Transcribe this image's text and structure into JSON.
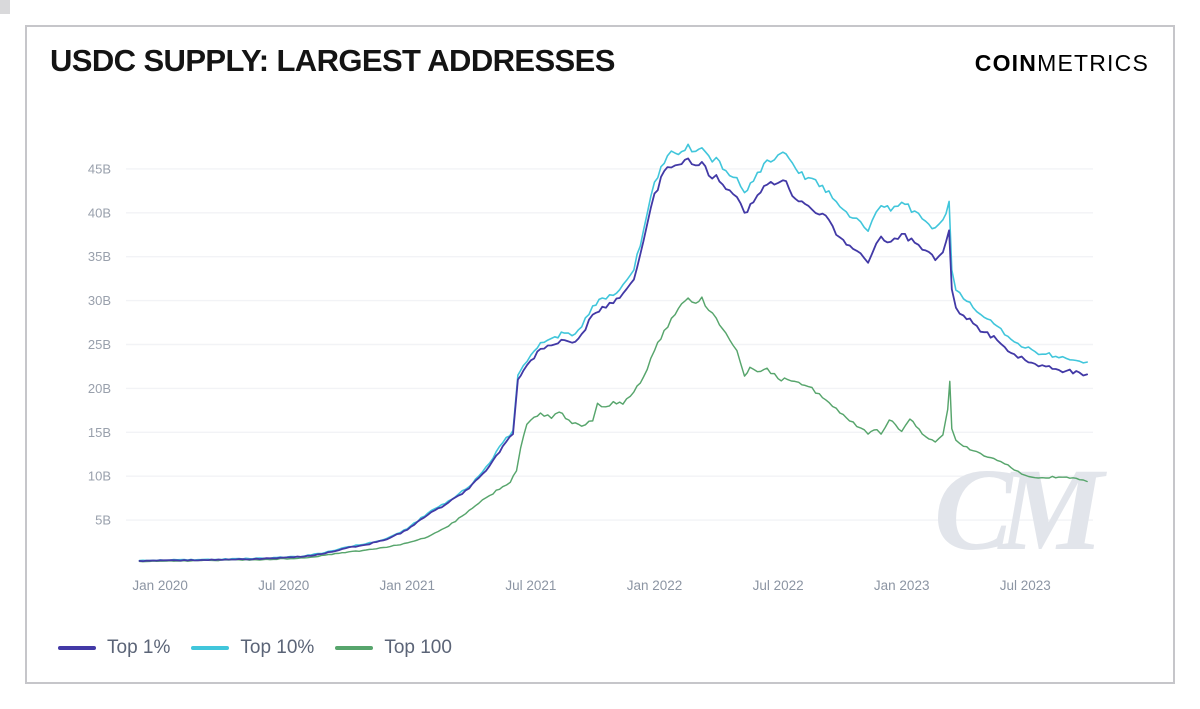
{
  "header": {
    "title": "USDC SUPPLY: LARGEST ADDRESSES",
    "logo_bold": "COIN",
    "logo_light": "METRICS"
  },
  "watermark": "CM",
  "colors": {
    "top_1_percent": "#4239A6",
    "top_10_percent": "#41C6DB",
    "top_100": "#57A56C",
    "grid": "#f2f3f6",
    "y_tick_text": "#99a0ac",
    "x_tick_text": "#8c95a3",
    "card_border": "#c6c6ca",
    "watermark": "#e2e5eb"
  },
  "legend": {
    "items": [
      {
        "label": "Top 1%",
        "color": "#4239A6"
      },
      {
        "label": "Top 10%",
        "color": "#41C6DB"
      },
      {
        "label": "Top 100",
        "color": "#57A56C"
      }
    ]
  },
  "chart_data": {
    "type": "line",
    "title": "USDC SUPPLY: LARGEST ADDRESSES",
    "unit": "billions of USDC",
    "ylim": [
      0,
      50
    ],
    "x_range": [
      "2019-12",
      "2023-10"
    ],
    "grid": "horizontal only, very faint",
    "legend_position": "bottom-left",
    "y_ticks": [
      {
        "v": 5,
        "label": "5B"
      },
      {
        "v": 10,
        "label": "10B"
      },
      {
        "v": 15,
        "label": "15B"
      },
      {
        "v": 20,
        "label": "20B"
      },
      {
        "v": 25,
        "label": "25B"
      },
      {
        "v": 30,
        "label": "30B"
      },
      {
        "v": 35,
        "label": "35B"
      },
      {
        "v": 40,
        "label": "40B"
      },
      {
        "v": 45,
        "label": "45B"
      }
    ],
    "x_ticks": [
      {
        "m": "2020-01",
        "label": "Jan 2020"
      },
      {
        "m": "2020-07",
        "label": "Jul 2020"
      },
      {
        "m": "2021-01",
        "label": "Jan 2021"
      },
      {
        "m": "2021-07",
        "label": "Jul 2021"
      },
      {
        "m": "2022-01",
        "label": "Jan 2022"
      },
      {
        "m": "2022-07",
        "label": "Jul 2022"
      },
      {
        "m": "2023-01",
        "label": "Jan 2023"
      },
      {
        "m": "2023-07",
        "label": "Jul 2023"
      }
    ],
    "series": [
      {
        "name": "Top 1%",
        "id": "top-1-percent",
        "color": "#4239A6",
        "points": [
          [
            "2019-12",
            0.35
          ],
          [
            "2020-03",
            0.45
          ],
          [
            "2020-06",
            0.6
          ],
          [
            "2020-08",
            0.85
          ],
          [
            "2020-09",
            1.2
          ],
          [
            "2020-10",
            1.8
          ],
          [
            "2020-11",
            2.2
          ],
          [
            "2020-12",
            2.8
          ],
          [
            "2021-01",
            3.9
          ],
          [
            "2021-02",
            5.6
          ],
          [
            "2021-03",
            7.0
          ],
          [
            "2021-04",
            8.6
          ],
          [
            "2021-04-15",
            9.8
          ],
          [
            "2021-05",
            11.2
          ],
          [
            "2021-05-20",
            13.4
          ],
          [
            "2021-06-05",
            14.8
          ],
          [
            "2021-06-12",
            21.0
          ],
          [
            "2021-06-20",
            22.0
          ],
          [
            "2021-07",
            23.2
          ],
          [
            "2021-07-15",
            24.5
          ],
          [
            "2021-08",
            24.9
          ],
          [
            "2021-08-20",
            25.5
          ],
          [
            "2021-09",
            25.2
          ],
          [
            "2021-09-15",
            26.2
          ],
          [
            "2021-10",
            28.4
          ],
          [
            "2021-10-15",
            29.3
          ],
          [
            "2021-11",
            29.7
          ],
          [
            "2021-11-15",
            30.8
          ],
          [
            "2021-12",
            32.4
          ],
          [
            "2021-12-15",
            36.8
          ],
          [
            "2022-01",
            42.2
          ],
          [
            "2022-01-20",
            45.2
          ],
          [
            "2022-02",
            45.4
          ],
          [
            "2022-02-20",
            46.2
          ],
          [
            "2022-03",
            45.4
          ],
          [
            "2022-03-10",
            45.8
          ],
          [
            "2022-03-25",
            43.9
          ],
          [
            "2022-04",
            44.3
          ],
          [
            "2022-04-15",
            42.7
          ],
          [
            "2022-05",
            41.8
          ],
          [
            "2022-05-12",
            40.0
          ],
          [
            "2022-05-25",
            41.2
          ],
          [
            "2022-06",
            42.0
          ],
          [
            "2022-06-15",
            43.2
          ],
          [
            "2022-07",
            43.4
          ],
          [
            "2022-07-08",
            43.7
          ],
          [
            "2022-08",
            41.3
          ],
          [
            "2022-08-15",
            40.8
          ],
          [
            "2022-09",
            39.8
          ],
          [
            "2022-09-15",
            39.2
          ],
          [
            "2022-10",
            37.2
          ],
          [
            "2022-10-20",
            35.9
          ],
          [
            "2022-11",
            35.4
          ],
          [
            "2022-11-12",
            34.3
          ],
          [
            "2022-11-24",
            36.5
          ],
          [
            "2022-12",
            37.3
          ],
          [
            "2022-12-15",
            36.7
          ],
          [
            "2023-01",
            37.6
          ],
          [
            "2023-01-20",
            36.6
          ],
          [
            "2023-02",
            35.8
          ],
          [
            "2023-02-20",
            34.6
          ],
          [
            "2023-03-01",
            35.5
          ],
          [
            "2023-03-10",
            38.0
          ],
          [
            "2023-03-14",
            31.3
          ],
          [
            "2023-03-20",
            29.2
          ],
          [
            "2023-04",
            28.3
          ],
          [
            "2023-04-15",
            27.4
          ],
          [
            "2023-05",
            26.4
          ],
          [
            "2023-05-20",
            25.5
          ],
          [
            "2023-06",
            24.7
          ],
          [
            "2023-06-15",
            23.9
          ],
          [
            "2023-07",
            23.2
          ],
          [
            "2023-07-15",
            22.8
          ],
          [
            "2023-08",
            22.5
          ],
          [
            "2023-08-20",
            22.1
          ],
          [
            "2023-09",
            22.0
          ],
          [
            "2023-09-20",
            21.8
          ],
          [
            "2023-10",
            21.6
          ]
        ]
      },
      {
        "name": "Top 10%",
        "id": "top-10-percent",
        "color": "#41C6DB",
        "points": [
          [
            "2019-12",
            0.4
          ],
          [
            "2020-03",
            0.5
          ],
          [
            "2020-06",
            0.65
          ],
          [
            "2020-08",
            0.9
          ],
          [
            "2020-09",
            1.3
          ],
          [
            "2020-10",
            1.9
          ],
          [
            "2020-11",
            2.3
          ],
          [
            "2020-12",
            2.9
          ],
          [
            "2021-01",
            4.0
          ],
          [
            "2021-02",
            5.8
          ],
          [
            "2021-03",
            7.2
          ],
          [
            "2021-04",
            8.8
          ],
          [
            "2021-04-15",
            10.0
          ],
          [
            "2021-05",
            11.5
          ],
          [
            "2021-05-20",
            13.8
          ],
          [
            "2021-06-05",
            15.2
          ],
          [
            "2021-06-12",
            21.5
          ],
          [
            "2021-06-20",
            22.6
          ],
          [
            "2021-07",
            23.8
          ],
          [
            "2021-07-15",
            25.2
          ],
          [
            "2021-08",
            25.7
          ],
          [
            "2021-08-20",
            26.3
          ],
          [
            "2021-09",
            26.0
          ],
          [
            "2021-09-15",
            27.0
          ],
          [
            "2021-10",
            29.4
          ],
          [
            "2021-10-15",
            30.3
          ],
          [
            "2021-11",
            30.6
          ],
          [
            "2021-11-15",
            31.8
          ],
          [
            "2021-12",
            33.5
          ],
          [
            "2021-12-15",
            38.0
          ],
          [
            "2022-01",
            43.5
          ],
          [
            "2022-01-20",
            46.5
          ],
          [
            "2022-02",
            46.8
          ],
          [
            "2022-02-20",
            47.8
          ],
          [
            "2022-03",
            47.0
          ],
          [
            "2022-03-10",
            47.4
          ],
          [
            "2022-03-25",
            45.8
          ],
          [
            "2022-04",
            46.3
          ],
          [
            "2022-04-15",
            44.8
          ],
          [
            "2022-05",
            44.0
          ],
          [
            "2022-05-12",
            42.3
          ],
          [
            "2022-05-25",
            43.6
          ],
          [
            "2022-06",
            44.6
          ],
          [
            "2022-06-15",
            46.0
          ],
          [
            "2022-07",
            46.6
          ],
          [
            "2022-07-08",
            46.9
          ],
          [
            "2022-08",
            44.5
          ],
          [
            "2022-08-15",
            44.0
          ],
          [
            "2022-09",
            43.0
          ],
          [
            "2022-09-15",
            42.5
          ],
          [
            "2022-10",
            40.7
          ],
          [
            "2022-10-20",
            39.4
          ],
          [
            "2022-11",
            39.0
          ],
          [
            "2022-11-12",
            37.9
          ],
          [
            "2022-11-24",
            40.1
          ],
          [
            "2022-12",
            40.8
          ],
          [
            "2022-12-15",
            40.2
          ],
          [
            "2023-01",
            41.2
          ],
          [
            "2023-01-20",
            40.2
          ],
          [
            "2023-02",
            39.3
          ],
          [
            "2023-02-20",
            38.3
          ],
          [
            "2023-03-01",
            39.2
          ],
          [
            "2023-03-10",
            41.3
          ],
          [
            "2023-03-14",
            33.5
          ],
          [
            "2023-03-20",
            31.2
          ],
          [
            "2023-04",
            30.2
          ],
          [
            "2023-04-15",
            29.2
          ],
          [
            "2023-05",
            28.1
          ],
          [
            "2023-05-20",
            27.1
          ],
          [
            "2023-06",
            26.1
          ],
          [
            "2023-06-15",
            25.3
          ],
          [
            "2023-07",
            24.6
          ],
          [
            "2023-07-15",
            24.2
          ],
          [
            "2023-08",
            23.9
          ],
          [
            "2023-08-20",
            23.5
          ],
          [
            "2023-09",
            23.4
          ],
          [
            "2023-09-20",
            23.1
          ],
          [
            "2023-10",
            23.0
          ]
        ]
      },
      {
        "name": "Top 100",
        "id": "top-100",
        "color": "#57A56C",
        "points": [
          [
            "2019-12",
            0.3
          ],
          [
            "2020-03",
            0.4
          ],
          [
            "2020-06",
            0.5
          ],
          [
            "2020-08",
            0.7
          ],
          [
            "2020-09",
            1.0
          ],
          [
            "2020-10",
            1.3
          ],
          [
            "2020-11",
            1.6
          ],
          [
            "2020-12",
            1.9
          ],
          [
            "2021-01",
            2.4
          ],
          [
            "2021-02",
            3.1
          ],
          [
            "2021-03",
            4.3
          ],
          [
            "2021-04",
            6.1
          ],
          [
            "2021-04-15",
            6.9
          ],
          [
            "2021-05",
            7.8
          ],
          [
            "2021-05-20",
            8.8
          ],
          [
            "2021-06",
            9.3
          ],
          [
            "2021-06-10",
            10.6
          ],
          [
            "2021-06-16",
            13.2
          ],
          [
            "2021-06-25",
            15.9
          ],
          [
            "2021-07",
            16.4
          ],
          [
            "2021-07-15",
            17.2
          ],
          [
            "2021-08",
            16.6
          ],
          [
            "2021-08-12",
            17.3
          ],
          [
            "2021-09",
            16.0
          ],
          [
            "2021-09-15",
            15.7
          ],
          [
            "2021-10",
            16.3
          ],
          [
            "2021-10-08",
            18.3
          ],
          [
            "2021-10-20",
            17.9
          ],
          [
            "2021-11",
            18.5
          ],
          [
            "2021-11-15",
            18.2
          ],
          [
            "2021-12",
            19.6
          ],
          [
            "2021-12-15",
            21.3
          ],
          [
            "2022-01",
            24.3
          ],
          [
            "2022-01-15",
            26.6
          ],
          [
            "2022-02",
            28.4
          ],
          [
            "2022-02-20",
            30.3
          ],
          [
            "2022-03",
            29.7
          ],
          [
            "2022-03-10",
            30.4
          ],
          [
            "2022-03-20",
            28.9
          ],
          [
            "2022-04",
            28.0
          ],
          [
            "2022-04-15",
            26.3
          ],
          [
            "2022-05",
            24.3
          ],
          [
            "2022-05-12",
            21.4
          ],
          [
            "2022-05-20",
            22.4
          ],
          [
            "2022-06",
            21.9
          ],
          [
            "2022-06-15",
            22.3
          ],
          [
            "2022-07",
            21.1
          ],
          [
            "2022-07-15",
            21.0
          ],
          [
            "2022-08",
            20.7
          ],
          [
            "2022-08-15",
            20.2
          ],
          [
            "2022-09",
            19.4
          ],
          [
            "2022-09-15",
            18.4
          ],
          [
            "2022-10",
            17.2
          ],
          [
            "2022-10-15",
            16.3
          ],
          [
            "2022-11",
            15.5
          ],
          [
            "2022-11-12",
            14.8
          ],
          [
            "2022-11-25",
            15.3
          ],
          [
            "2022-12",
            14.8
          ],
          [
            "2022-12-13",
            16.4
          ],
          [
            "2023-01",
            15.1
          ],
          [
            "2023-01-13",
            16.5
          ],
          [
            "2023-02",
            14.8
          ],
          [
            "2023-02-20",
            13.9
          ],
          [
            "2023-03-01",
            14.7
          ],
          [
            "2023-03-08",
            17.6
          ],
          [
            "2023-03-11",
            20.8
          ],
          [
            "2023-03-14",
            15.4
          ],
          [
            "2023-03-20",
            14.1
          ],
          [
            "2023-04",
            13.4
          ],
          [
            "2023-04-15",
            12.9
          ],
          [
            "2023-05",
            12.3
          ],
          [
            "2023-05-20",
            11.8
          ],
          [
            "2023-06",
            11.4
          ],
          [
            "2023-06-15",
            10.7
          ],
          [
            "2023-07",
            10.1
          ],
          [
            "2023-07-20",
            9.8
          ],
          [
            "2023-08",
            9.8
          ],
          [
            "2023-08-20",
            9.9
          ],
          [
            "2023-09",
            9.9
          ],
          [
            "2023-09-20",
            9.6
          ],
          [
            "2023-10",
            9.4
          ]
        ]
      }
    ]
  }
}
